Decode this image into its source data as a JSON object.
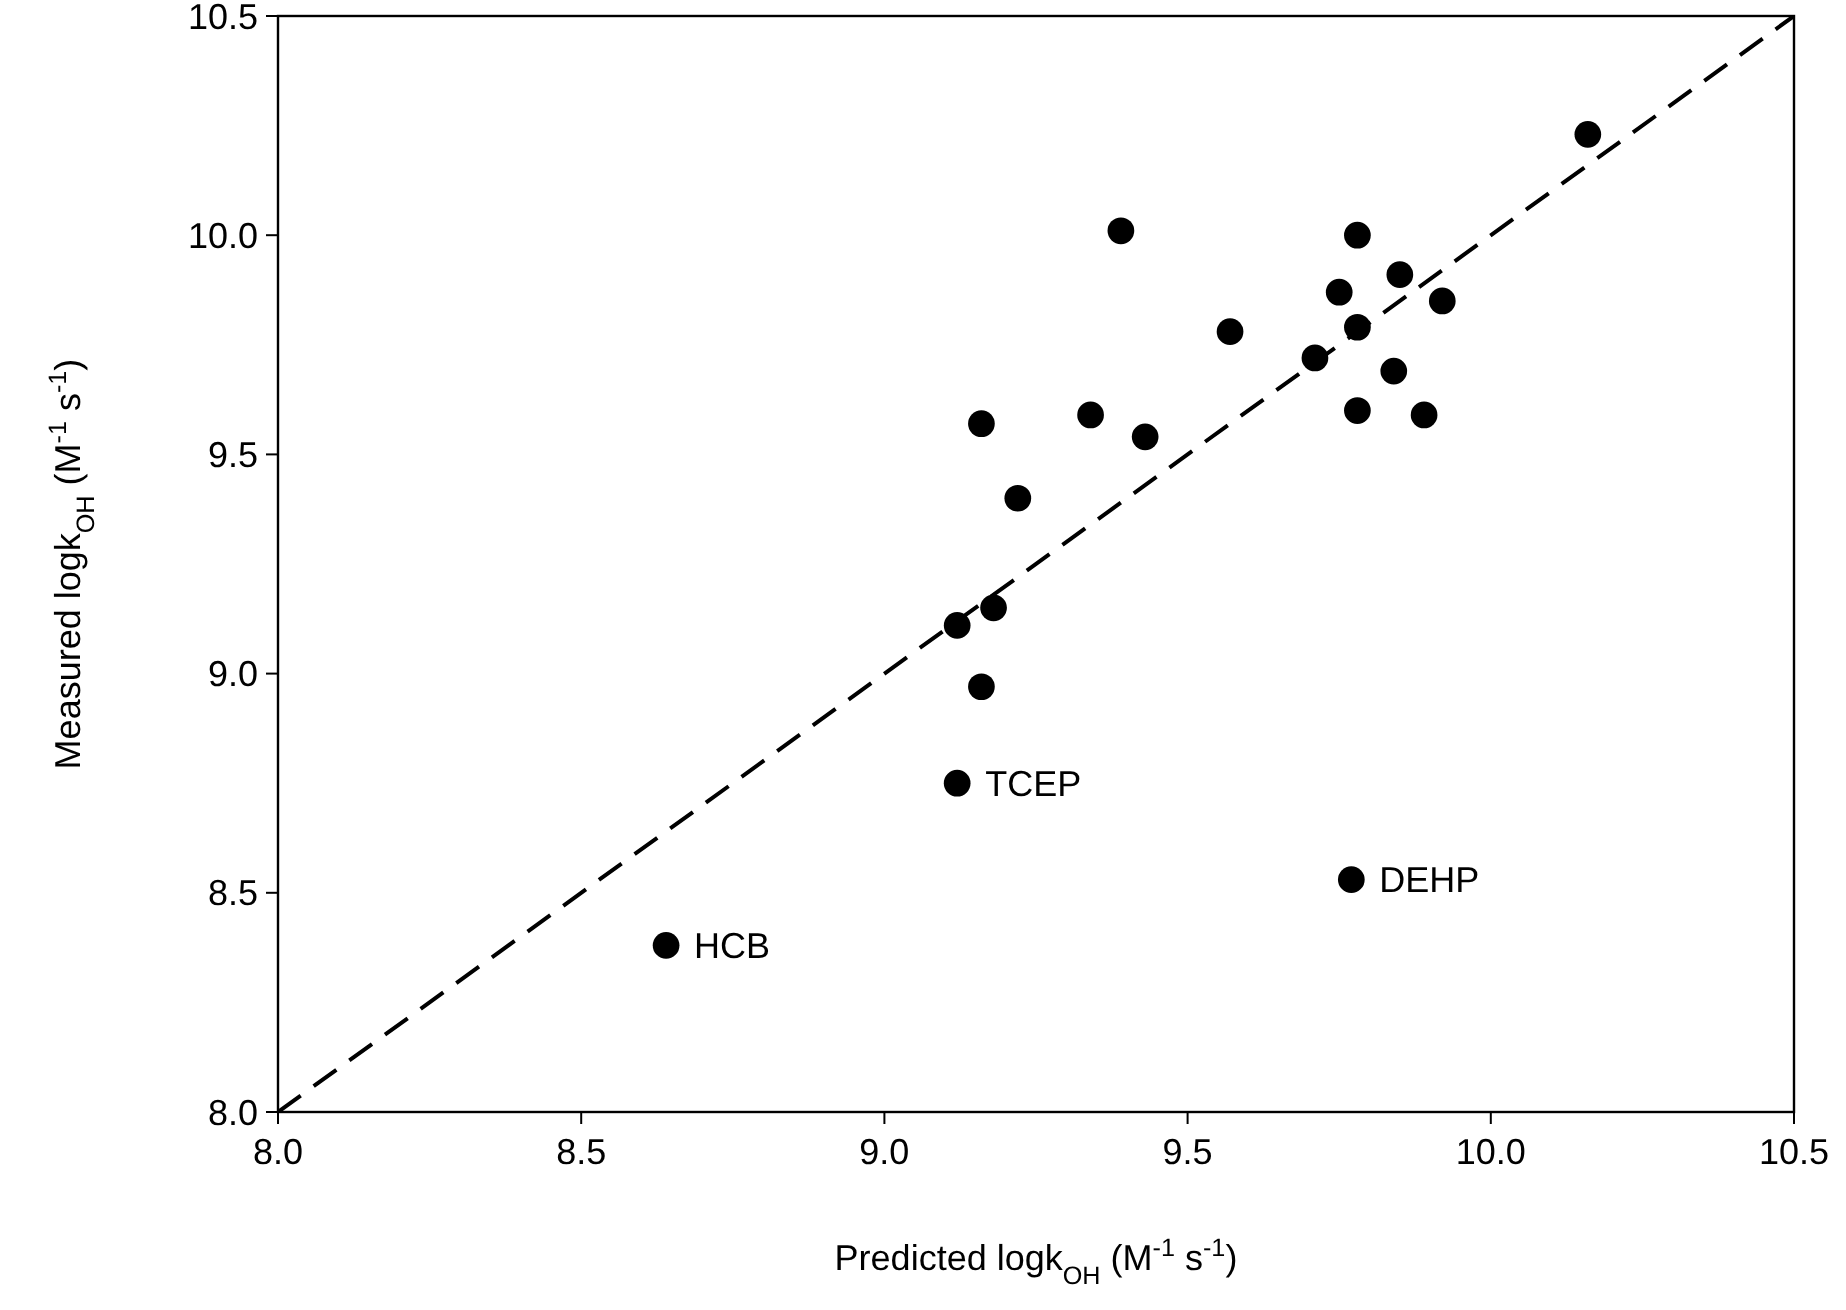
{
  "chart_data": {
    "type": "scatter",
    "xlabel": "Predicted logk$_{OH}$ (M$^{-1}$ s$^{-1}$)",
    "ylabel": "Measured logk$_{OH}$ (M$^{-1}$ s$^{-1}$)",
    "xlim": [
      8.0,
      10.5
    ],
    "ylim": [
      8.0,
      10.5
    ],
    "xticks": [
      {
        "value": 8,
        "label": "8.0"
      },
      {
        "value": 8.5,
        "label": "8.5"
      },
      {
        "value": 9,
        "label": "9.0"
      },
      {
        "value": 9.5,
        "label": "9.5"
      },
      {
        "value": 10,
        "label": "10.0"
      },
      {
        "value": 10.5,
        "label": "10.5"
      }
    ],
    "yticks": [
      {
        "value": 8,
        "label": "8.0"
      },
      {
        "value": 8.5,
        "label": "8.5"
      },
      {
        "value": 9,
        "label": "9.0"
      },
      {
        "value": 9.5,
        "label": "9.5"
      },
      {
        "value": 10,
        "label": "10.0"
      },
      {
        "value": 10.5,
        "label": "10.5"
      }
    ],
    "grid": false,
    "series": [
      {
        "color": "#000000",
        "marker": "circle",
        "x": [
          9.39,
          9.78,
          10.16,
          9.85,
          9.75,
          9.92,
          9.78,
          9.57,
          9.71,
          9.84,
          9.78,
          9.89,
          9.34,
          9.16,
          9.43,
          9.22,
          9.18,
          9.12,
          9.16,
          9.12,
          9.77,
          8.64
        ],
        "values": [
          10.01,
          10.0,
          10.23,
          9.91,
          9.87,
          9.85,
          9.79,
          9.78,
          9.72,
          9.69,
          9.6,
          9.59,
          9.59,
          9.57,
          9.54,
          9.4,
          9.15,
          9.11,
          8.97,
          8.75,
          8.53,
          8.38
        ]
      },
      {
        "type": "line",
        "color": "#000000",
        "marker": "none",
        "line_style": "dashed",
        "x": [
          8.0,
          10.5
        ],
        "values": [
          8.0,
          10.5
        ]
      }
    ],
    "annotations": [
      {
        "text": "TCEP",
        "x": 9.12,
        "y": 8.75
      },
      {
        "text": "DEHP",
        "x": 9.77,
        "y": 8.53
      },
      {
        "text": "HCB",
        "x": 8.64,
        "y": 8.38
      }
    ]
  }
}
